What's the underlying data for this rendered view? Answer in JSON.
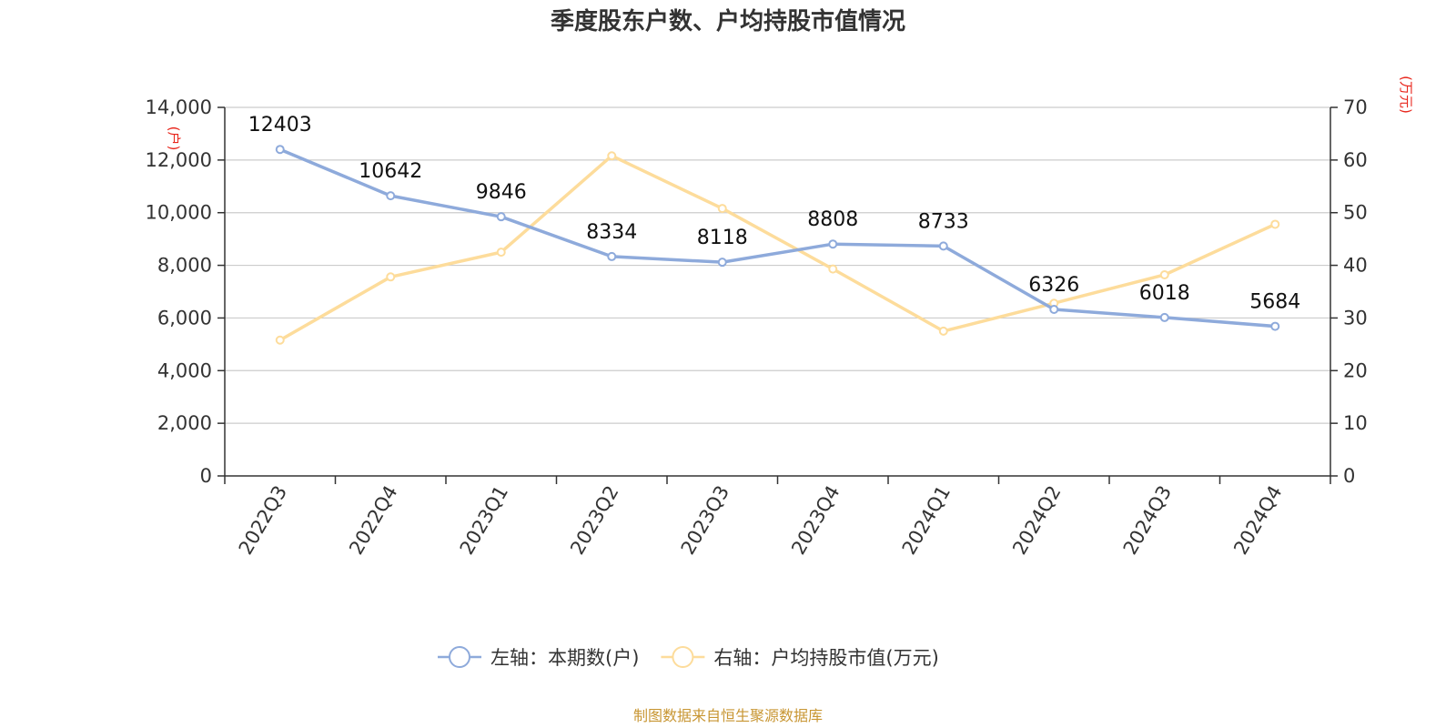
{
  "chart_data": {
    "type": "line",
    "title": "季度股东户数、户均持股市值情况",
    "categories": [
      "2022Q3",
      "2022Q4",
      "2023Q1",
      "2023Q2",
      "2023Q3",
      "2023Q4",
      "2024Q1",
      "2024Q2",
      "2024Q3",
      "2024Q4"
    ],
    "left_axis": {
      "unit": "(户)",
      "ylim": [
        0,
        14000
      ],
      "ticks": [
        "0",
        "2,000",
        "4,000",
        "6,000",
        "8,000",
        "10,000",
        "12,000",
        "14,000"
      ]
    },
    "right_axis": {
      "unit": "(万元)",
      "ylim": [
        0,
        70
      ],
      "ticks": [
        "0",
        "10",
        "20",
        "30",
        "40",
        "50",
        "60",
        "70"
      ]
    },
    "series": [
      {
        "name": "左轴：本期数(户)",
        "axis": "left",
        "color": "#8eaadb",
        "values": [
          12403,
          10642,
          9846,
          8334,
          8118,
          8808,
          8733,
          6326,
          6018,
          5684
        ],
        "labels": [
          "12403",
          "10642",
          "9846",
          "8334",
          "8118",
          "8808",
          "8733",
          "6326",
          "6018",
          "5684"
        ]
      },
      {
        "name": "右轴：户均持股市值(万元)",
        "axis": "right",
        "color": "#fddc9b",
        "values": [
          25.8,
          37.8,
          42.5,
          60.8,
          50.8,
          39.3,
          27.5,
          32.8,
          38.2,
          47.8
        ]
      }
    ],
    "grid": true,
    "legend": "bottom-center"
  },
  "source": "制图数据来自恒生聚源数据库"
}
